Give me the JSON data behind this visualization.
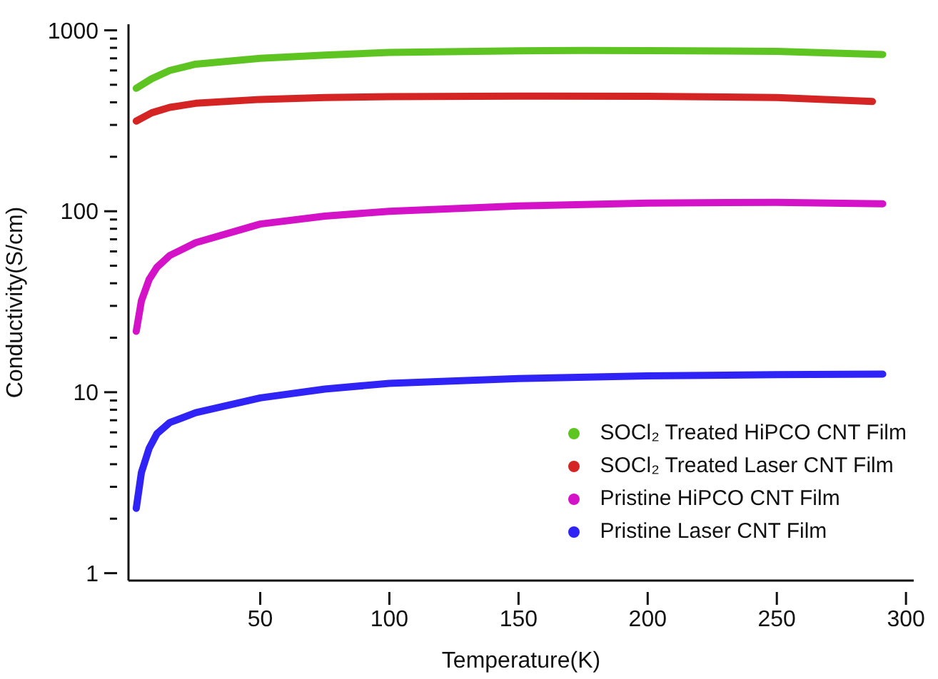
{
  "chart_data": {
    "type": "line",
    "xlabel": "Temperature(K)",
    "ylabel": "Conductivity(S/cm)",
    "log": "y",
    "xlim": [
      -1,
      303
    ],
    "xticks": [
      50,
      100,
      150,
      200,
      250,
      300
    ],
    "ylim": [
      0.91,
      1080
    ],
    "yticks": [
      1,
      {
        "value": 2,
        "label": null
      },
      {
        "value": 3,
        "label": null
      },
      {
        "value": 4,
        "label": null
      },
      {
        "value": 5,
        "label": null
      },
      {
        "value": 6,
        "label": null
      },
      {
        "value": 7,
        "label": null
      },
      {
        "value": 8,
        "label": null
      },
      {
        "value": 9,
        "label": null
      },
      10,
      {
        "value": 20,
        "label": null
      },
      {
        "value": 30,
        "label": null
      },
      {
        "value": 40,
        "label": null
      },
      {
        "value": 50,
        "label": null
      },
      {
        "value": 60,
        "label": null
      },
      {
        "value": 70,
        "label": null
      },
      {
        "value": 80,
        "label": null
      },
      {
        "value": 90,
        "label": null
      },
      100,
      {
        "value": 200,
        "label": null
      },
      {
        "value": 300,
        "label": null
      },
      {
        "value": 400,
        "label": null
      },
      {
        "value": 500,
        "label": null
      },
      {
        "value": 600,
        "label": null
      },
      {
        "value": 700,
        "label": null
      },
      {
        "value": 800,
        "label": null
      },
      {
        "value": 900,
        "label": null
      },
      1000
    ],
    "grid": false,
    "legend": "bottom right",
    "marker": "none",
    "line_style": "solid",
    "series": [
      {
        "name": "SOCl₂ Treated HiPCO CNT Film",
        "color": "#5ec422",
        "x": [
          2,
          8,
          15,
          25,
          50,
          75,
          100,
          150,
          175,
          200,
          250,
          291
        ],
        "values": [
          478,
          540,
          600,
          650,
          700,
          730,
          755,
          770,
          774,
          772,
          765,
          735
        ]
      },
      {
        "name": "SOCl₂ Treated Laser CNT Film",
        "color": "#d42424",
        "x": [
          2,
          8,
          15,
          25,
          50,
          75,
          100,
          150,
          200,
          250,
          287
        ],
        "values": [
          315,
          350,
          375,
          395,
          415,
          425,
          430,
          433,
          432,
          425,
          404
        ]
      },
      {
        "name": "Pristine HiPCO CNT Film",
        "color": "#d412c8",
        "x": [
          2,
          4,
          7,
          10,
          15,
          25,
          50,
          75,
          100,
          150,
          200,
          250,
          291
        ],
        "values": [
          21.7,
          32,
          42,
          49,
          57,
          67,
          85,
          94,
          100,
          107,
          111,
          112,
          110
        ]
      },
      {
        "name": "Pristine Laser CNT Film",
        "color": "#2f24f5",
        "x": [
          2,
          4,
          7,
          10,
          15,
          25,
          50,
          75,
          100,
          150,
          200,
          250,
          291
        ],
        "values": [
          2.28,
          3.6,
          4.9,
          5.9,
          6.8,
          7.7,
          9.3,
          10.4,
          11.2,
          11.9,
          12.3,
          12.5,
          12.6
        ]
      }
    ]
  }
}
